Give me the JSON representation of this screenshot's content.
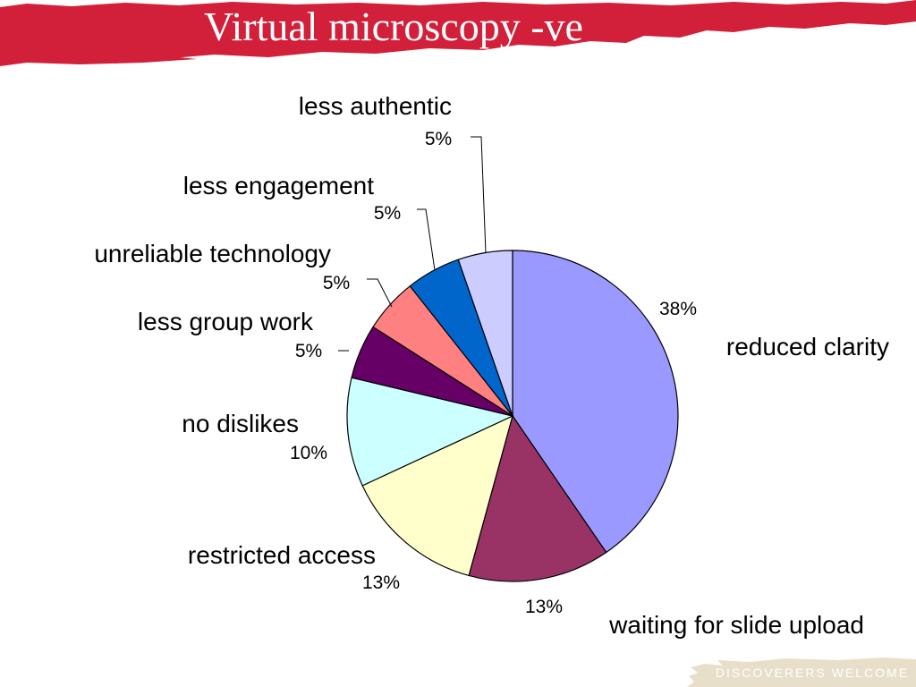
{
  "slide": {
    "title": "Virtual microscopy -ve",
    "footer": "DISCOVERERS WELCOME"
  },
  "colors": {
    "banner": "#d21f3a",
    "title_text": "#ffffff",
    "footer_bg": "#e7dfc9",
    "footer_text": "#ffffff"
  },
  "chart_data": {
    "type": "pie",
    "title": "",
    "start": "12 o'clock",
    "direction": "clockwise",
    "slices": [
      {
        "label": "reduced clarity",
        "value": 38,
        "display": "38%",
        "color": "#9999ff"
      },
      {
        "label": "waiting for slide upload",
        "value": 13,
        "display": "13%",
        "color": "#993366"
      },
      {
        "label": "restricted access",
        "value": 13,
        "display": "13%",
        "color": "#ffffcc"
      },
      {
        "label": "no dislikes",
        "value": 10,
        "display": "10%",
        "color": "#ccffff"
      },
      {
        "label": "less group work",
        "value": 5,
        "display": "5%",
        "color": "#660066"
      },
      {
        "label": "unreliable technology",
        "value": 5,
        "display": "5%",
        "color": "#ff8080"
      },
      {
        "label": "less engagement",
        "value": 5,
        "display": "5%",
        "color": "#0066cc"
      },
      {
        "label": "less authentic",
        "value": 5,
        "display": "5%",
        "color": "#ccccff"
      }
    ]
  }
}
